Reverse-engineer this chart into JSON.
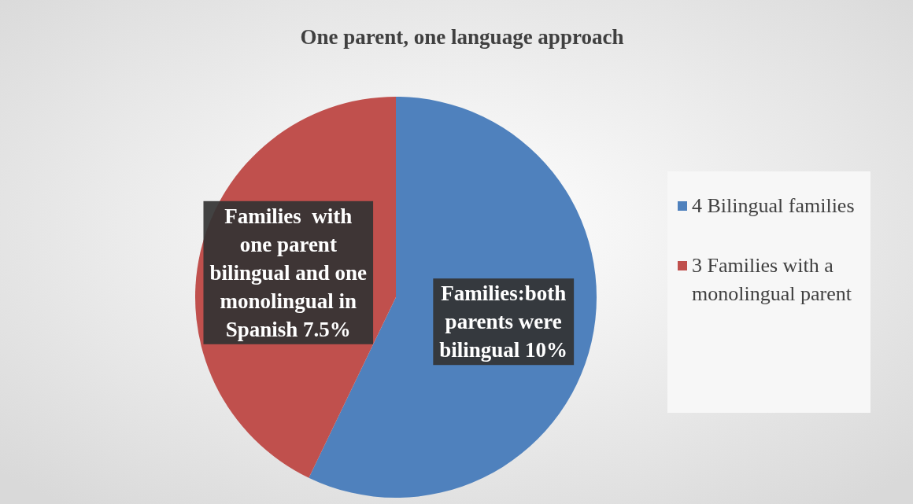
{
  "chart_data": {
    "type": "pie",
    "title": "One parent, one language approach",
    "categories": [
      "4 Bilingual families",
      "3 Families with a monolingual parent"
    ],
    "values": [
      10,
      7.5
    ],
    "colors": [
      "#4f81bd",
      "#c0504d"
    ],
    "value_labels": [
      "Families:both parents were bilingual 10%",
      "Families  with one parent bilingual and one monolingual in Spanish 7.5%"
    ],
    "legend": "right"
  }
}
